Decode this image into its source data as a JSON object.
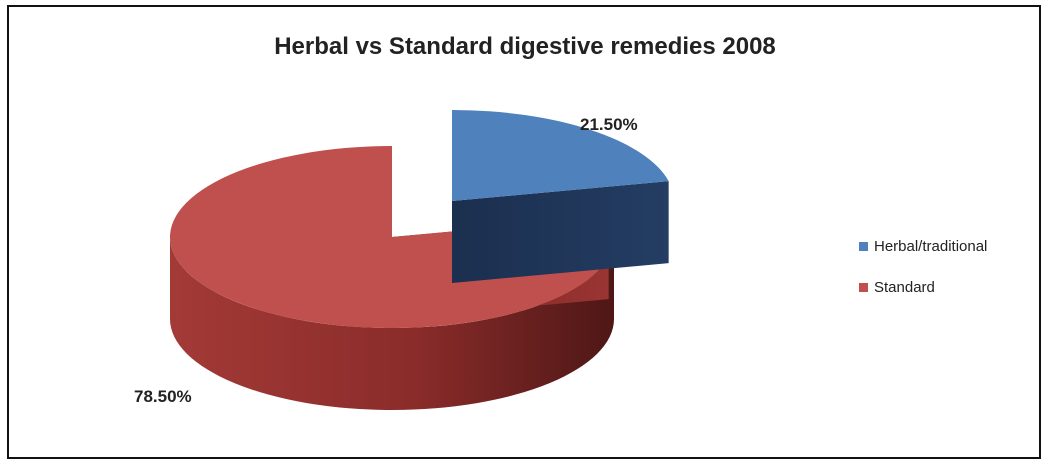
{
  "chart_data": {
    "type": "pie",
    "title": "Herbal vs Standard digestive remedies 2008",
    "legend_position": "right",
    "slices": [
      {
        "name": "Herbal/traditional",
        "value": 21.5,
        "label": "21.50%",
        "color": "#4f81bd",
        "exploded": true
      },
      {
        "name": "Standard",
        "value": 78.5,
        "label": "78.50%",
        "color": "#c0504d",
        "exploded": false
      }
    ]
  }
}
